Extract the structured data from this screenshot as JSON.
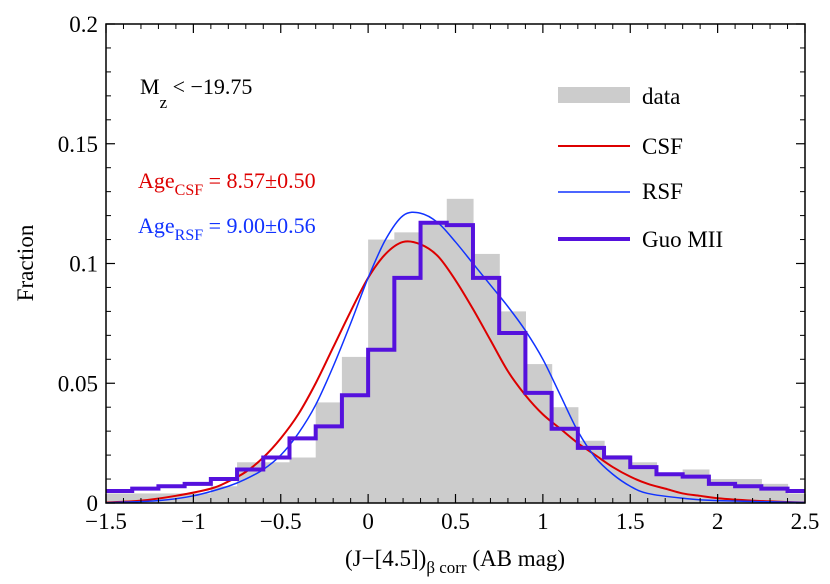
{
  "chart_data": {
    "type": "histogram",
    "title": "",
    "xlabel": "(J−[4.5])",
    "xlabel_sub": "β corr",
    "xlabel_unit": " (AB mag)",
    "ylabel": "Fraction",
    "xlim": [
      -1.5,
      2.5
    ],
    "ylim": [
      0,
      0.2
    ],
    "x_ticks": [
      -1.5,
      -1,
      -0.5,
      0,
      0.5,
      1,
      1.5,
      2,
      2.5
    ],
    "x_tick_labels": [
      "−1.5",
      "−1",
      "−0.5",
      "0",
      "0.5",
      "1",
      "1.5",
      "2",
      "2.5"
    ],
    "y_ticks": [
      0,
      0.05,
      0.1,
      0.15,
      0.2
    ],
    "y_tick_labels": [
      "0",
      "0.05",
      "0.1",
      "0.15",
      "0.2"
    ],
    "bin_edges": [
      -1.5,
      -1.35,
      -1.2,
      -1.05,
      -0.9,
      -0.75,
      -0.6,
      -0.45,
      -0.3,
      -0.15,
      0,
      0.15,
      0.3,
      0.45,
      0.6,
      0.75,
      0.9,
      1.05,
      1.2,
      1.35,
      1.5,
      1.65,
      1.8,
      1.95,
      2.1,
      2.25,
      2.4,
      2.5
    ],
    "series": [
      {
        "name": "data",
        "kind": "filled-histogram",
        "color": "#cccccc",
        "values": [
          0.004,
          0.004,
          0.004,
          0.004,
          0.007,
          0.017,
          0.017,
          0.019,
          0.042,
          0.061,
          0.11,
          0.113,
          0.117,
          0.127,
          0.104,
          0.08,
          0.058,
          0.04,
          0.026,
          0.02,
          0.017,
          0.012,
          0.014,
          0.01,
          0.01,
          0.008,
          0.004
        ]
      },
      {
        "name": "Guo MII",
        "kind": "step-histogram",
        "color": "#5511dd",
        "values": [
          0.005,
          0.006,
          0.007,
          0.008,
          0.01,
          0.014,
          0.019,
          0.027,
          0.032,
          0.045,
          0.064,
          0.094,
          0.117,
          0.116,
          0.094,
          0.071,
          0.046,
          0.031,
          0.023,
          0.019,
          0.015,
          0.012,
          0.011,
          0.008,
          0.007,
          0.006,
          0.005
        ]
      },
      {
        "name": "CSF",
        "kind": "curve",
        "color": "#dd0000",
        "x": [
          -1.5,
          -1.3,
          -1.1,
          -0.9,
          -0.8,
          -0.7,
          -0.6,
          -0.5,
          -0.4,
          -0.3,
          -0.2,
          -0.1,
          0,
          0.1,
          0.2,
          0.3,
          0.4,
          0.5,
          0.6,
          0.7,
          0.8,
          0.9,
          1.0,
          1.1,
          1.2,
          1.3,
          1.4,
          1.5,
          1.6,
          1.7,
          1.8,
          1.9,
          2.0,
          2.2,
          2.4,
          2.5
        ],
        "y": [
          0.0002,
          0.001,
          0.003,
          0.006,
          0.009,
          0.013,
          0.019,
          0.027,
          0.037,
          0.05,
          0.065,
          0.08,
          0.094,
          0.104,
          0.109,
          0.108,
          0.103,
          0.093,
          0.081,
          0.068,
          0.055,
          0.045,
          0.037,
          0.031,
          0.025,
          0.02,
          0.015,
          0.011,
          0.008,
          0.006,
          0.004,
          0.003,
          0.002,
          0.001,
          0.0004,
          0.0002
        ]
      },
      {
        "name": "RSF",
        "kind": "curve",
        "color": "#1133ff",
        "x": [
          -1.5,
          -1.2,
          -1.0,
          -0.8,
          -0.7,
          -0.6,
          -0.5,
          -0.4,
          -0.3,
          -0.2,
          -0.1,
          0,
          0.1,
          0.2,
          0.3,
          0.4,
          0.5,
          0.6,
          0.7,
          0.8,
          0.9,
          1.0,
          1.1,
          1.2,
          1.3,
          1.4,
          1.5,
          1.6,
          1.8,
          2.0,
          2.5
        ],
        "y": [
          0.0001,
          0.001,
          0.003,
          0.007,
          0.01,
          0.014,
          0.02,
          0.029,
          0.041,
          0.057,
          0.075,
          0.094,
          0.11,
          0.12,
          0.121,
          0.117,
          0.109,
          0.1,
          0.091,
          0.082,
          0.072,
          0.06,
          0.045,
          0.03,
          0.019,
          0.012,
          0.007,
          0.004,
          0.002,
          0.001,
          0.0002
        ]
      }
    ],
    "legend": {
      "placement": "top-right",
      "entries": [
        {
          "label": "data",
          "color": "#cccccc",
          "style": "bar"
        },
        {
          "label": "CSF",
          "color": "#dd0000",
          "style": "line"
        },
        {
          "label": "RSF",
          "color": "#1133ff",
          "style": "line"
        },
        {
          "label": "Guo MII",
          "color": "#5511dd",
          "style": "thick-line"
        }
      ]
    },
    "annotations": {
      "mag_cut_main": "M",
      "mag_cut_sub": "z",
      "mag_cut_rest": " < −19.75",
      "age_csf_main": "Age",
      "age_csf_sub": "CSF",
      "age_csf_rest": " = 8.57±0.50",
      "age_csf_color": "#dd0000",
      "age_rsf_main": "Age",
      "age_rsf_sub": "RSF",
      "age_rsf_rest": " = 9.00±0.56",
      "age_rsf_color": "#1133ff"
    }
  }
}
